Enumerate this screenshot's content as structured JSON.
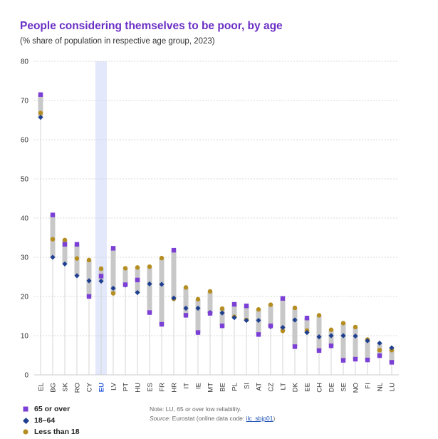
{
  "title": "People considering themselves to be poor, by age",
  "subtitle": "(% share of population in respective age group, 2023)",
  "legend": [
    {
      "label": "65 or over",
      "color": "#7b3fd6",
      "marker": "square"
    },
    {
      "label": "18–64",
      "color": "#1f3f8f",
      "marker": "diamond"
    },
    {
      "label": "Less than 18",
      "color": "#b58e22",
      "marker": "circle"
    }
  ],
  "notes": {
    "note": "Note: LU, 65 or over low reliability.",
    "source_label": "Source:",
    "source_text": "Eurostat (online data code:",
    "source_code": "ilc_sbjp01",
    "source_close": ")"
  },
  "colors": {
    "range_bar": "#c8c8c8",
    "highlight": "#e3e8fb",
    "grid": "#cccccc",
    "eu_label": "#2a5bd7"
  },
  "chart_data": {
    "type": "dot-range",
    "title": "People considering themselves to be poor, by age",
    "subtitle": "(% share of population in respective age group, 2023)",
    "ylim": [
      0,
      80
    ],
    "yticks": [
      0,
      10,
      20,
      30,
      40,
      50,
      60,
      70,
      80
    ],
    "grid": true,
    "highlight_category": "EU",
    "categories": [
      "EL",
      "BG",
      "SK",
      "RO",
      "CY",
      "EU",
      "LV",
      "PT",
      "HU",
      "ES",
      "FR",
      "HR",
      "IT",
      "IE",
      "MT",
      "BE",
      "PL",
      "SI",
      "AT",
      "CZ",
      "LT",
      "DK",
      "EE",
      "CH",
      "DE",
      "SE",
      "NO",
      "FI",
      "NL",
      "LU"
    ],
    "series": [
      {
        "name": "65 or over",
        "values": [
          71.5,
          40.8,
          33.3,
          33.3,
          20.0,
          25.2,
          32.3,
          23.0,
          24.2,
          15.9,
          12.9,
          31.8,
          15.2,
          10.8,
          15.7,
          12.5,
          18.0,
          17.6,
          10.3,
          12.5,
          19.5,
          7.2,
          14.5,
          6.2,
          7.4,
          3.7,
          4.0,
          3.8,
          4.9,
          3.2
        ]
      },
      {
        "name": "18–64",
        "values": [
          65.7,
          30.0,
          28.3,
          25.3,
          24.0,
          23.9,
          22.1,
          22.9,
          21.0,
          23.2,
          23.1,
          19.6,
          17.0,
          17.0,
          15.9,
          15.8,
          14.6,
          13.9,
          13.9,
          12.3,
          12.1,
          14.0,
          10.8,
          9.7,
          10.0,
          10.0,
          9.9,
          8.7,
          8.1,
          6.9
        ]
      },
      {
        "name": "Less than 18",
        "values": [
          66.8,
          34.6,
          34.4,
          29.7,
          29.3,
          27.1,
          20.8,
          27.2,
          27.4,
          27.6,
          29.8,
          19.4,
          22.3,
          19.3,
          21.3,
          16.9,
          14.8,
          14.0,
          16.7,
          17.9,
          11.2,
          17.1,
          11.3,
          15.2,
          11.5,
          13.2,
          12.2,
          9.0,
          6.3,
          6.3
        ]
      }
    ]
  }
}
